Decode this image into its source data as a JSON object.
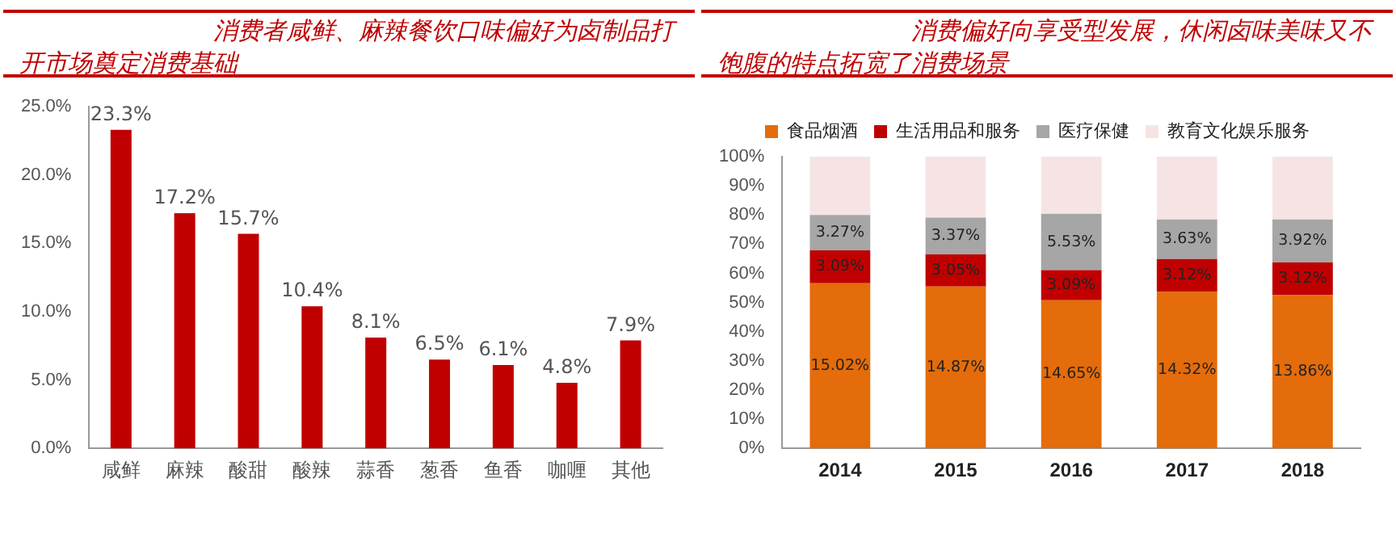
{
  "chart_data": [
    {
      "type": "bar",
      "title": "消费者咸鲜、麻辣餐饮口味偏好为卤制品打开市场奠定消费基础",
      "categories": [
        "咸鲜",
        "麻辣",
        "酸甜",
        "酸辣",
        "蒜香",
        "葱香",
        "鱼香",
        "咖喱",
        "其他"
      ],
      "values": [
        23.3,
        17.2,
        15.7,
        10.4,
        8.1,
        6.5,
        6.1,
        4.8,
        7.9
      ],
      "value_labels": [
        "23.3%",
        "17.2%",
        "15.7%",
        "10.4%",
        "8.1%",
        "6.5%",
        "6.1%",
        "4.8%",
        "7.9%"
      ],
      "color": "#c00000",
      "ylim": [
        0,
        25
      ],
      "yticks": [
        {
          "value": 0,
          "label": "0.0%"
        },
        {
          "value": 5,
          "label": "5.0%"
        },
        {
          "value": 10,
          "label": "10.0%"
        },
        {
          "value": 15,
          "label": "15.0%"
        },
        {
          "value": 20,
          "label": "20.0%"
        },
        {
          "value": 25,
          "label": "25.0%"
        }
      ],
      "grid": false,
      "legend": false
    },
    {
      "type": "bar",
      "title": "消费偏好向享受型发展，休闲卤味美味又不饱腹的特点拓宽了消费场景",
      "categories": [
        "2014",
        "2015",
        "2016",
        "2017",
        "2018"
      ],
      "stacked": true,
      "series": [
        {
          "name": "食品烟酒",
          "color": "#e46c0a",
          "values": [
            56.6,
            55.5,
            50.8,
            53.6,
            52.5
          ]
        },
        {
          "name": "生活用品和服务",
          "color": "#c00000",
          "values": [
            11.3,
            11.0,
            10.3,
            11.3,
            11.2
          ]
        },
        {
          "name": "医疗保健",
          "color": "#a6a6a6",
          "values": [
            12.1,
            12.6,
            19.3,
            13.6,
            14.8
          ]
        },
        {
          "name": "教育文化娱乐服务",
          "color": "#f6e4e4",
          "values": [
            20.0,
            20.9,
            19.6,
            21.5,
            21.5
          ]
        }
      ],
      "annotations": [
        "15.02%",
        "14.87%",
        "14.65%",
        "14.32%",
        "13.86%",
        "3.09%",
        "3.05%",
        "3.09%",
        "3.12%",
        "3.12%",
        "3.27%",
        "3.37%",
        "5.53%",
        "3.63%",
        "3.92%"
      ],
      "ylim": [
        0,
        100
      ],
      "yticks": [
        {
          "value": 0,
          "label": "0%"
        },
        {
          "value": 10,
          "label": "10%"
        },
        {
          "value": 20,
          "label": "20%"
        },
        {
          "value": 30,
          "label": "30%"
        },
        {
          "value": 40,
          "label": "40%"
        },
        {
          "value": 50,
          "label": "50%"
        },
        {
          "value": 60,
          "label": "60%"
        },
        {
          "value": 70,
          "label": "70%"
        },
        {
          "value": 80,
          "label": "80%"
        },
        {
          "value": 90,
          "label": "90%"
        },
        {
          "value": 100,
          "label": "100%"
        }
      ],
      "grid": false,
      "legend": "top"
    }
  ]
}
